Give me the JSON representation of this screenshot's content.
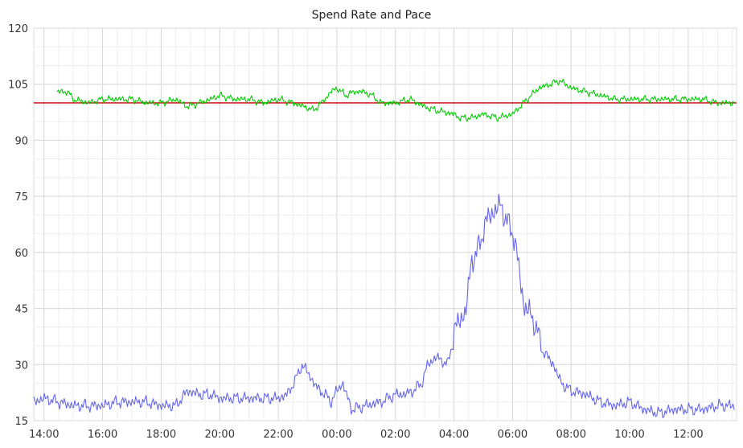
{
  "chart_data": {
    "type": "line",
    "title": "Spend Rate and Pace",
    "xlabel": "",
    "ylabel": "",
    "ylim": [
      15,
      120
    ],
    "xlim_hours": [
      13.65,
      37.65
    ],
    "y_ticks": [
      "15",
      "30",
      "45",
      "60",
      "75",
      "90",
      "105",
      "120"
    ],
    "x_ticks": [
      {
        "label": "14:00",
        "hour": 14
      },
      {
        "label": "16:00",
        "hour": 16
      },
      {
        "label": "18:00",
        "hour": 18
      },
      {
        "label": "20:00",
        "hour": 20
      },
      {
        "label": "22:00",
        "hour": 22
      },
      {
        "label": "00:00",
        "hour": 24
      },
      {
        "label": "02:00",
        "hour": 26
      },
      {
        "label": "04:00",
        "hour": 28
      },
      {
        "label": "06:00",
        "hour": 30
      },
      {
        "label": "08:00",
        "hour": 32
      },
      {
        "label": "10:00",
        "hour": 34
      },
      {
        "label": "12:00",
        "hour": 36
      }
    ],
    "grid": true,
    "reference_line": {
      "y": 100,
      "color": "#cc0000"
    },
    "series": [
      {
        "name": "",
        "color": "#00cc00",
        "x_hours": [
          14.45,
          14.8,
          15.0,
          15.5,
          16.0,
          16.5,
          17.0,
          17.5,
          18.0,
          18.5,
          18.9,
          19.3,
          19.7,
          20.0,
          20.5,
          21.0,
          21.5,
          22.0,
          22.5,
          22.9,
          23.2,
          23.6,
          23.8,
          24.0,
          24.3,
          24.6,
          24.9,
          25.2,
          25.5,
          26.0,
          26.5,
          27.0,
          27.4,
          28.0,
          28.2,
          28.6,
          29.0,
          29.5,
          30.0,
          30.5,
          30.9,
          31.3,
          31.6,
          32.0,
          32.5,
          33.0,
          33.5,
          34.0,
          34.5,
          35.0,
          35.5,
          36.0,
          36.5,
          37.0,
          37.6
        ],
        "values": [
          103,
          103,
          101,
          100,
          101,
          101,
          101,
          100,
          100,
          101,
          99,
          100,
          101,
          102,
          101,
          101,
          100,
          101,
          100,
          99,
          98,
          101,
          103,
          104,
          102,
          103,
          103,
          102,
          100,
          100,
          101,
          99,
          98,
          97,
          96,
          96,
          97,
          96,
          97,
          101,
          104,
          105,
          106,
          104,
          103,
          102,
          101,
          101,
          101,
          101,
          101,
          101,
          101,
          100,
          100
        ]
      },
      {
        "name": "",
        "color": "#6666ee",
        "x_hours": [
          13.65,
          14.0,
          14.5,
          15.0,
          15.5,
          16.0,
          16.5,
          17.0,
          17.5,
          18.0,
          18.5,
          18.9,
          19.3,
          19.7,
          20.0,
          20.5,
          21.0,
          21.5,
          22.0,
          22.3,
          22.6,
          22.8,
          23.0,
          23.3,
          23.6,
          23.8,
          24.0,
          24.2,
          24.5,
          25.0,
          25.5,
          26.0,
          26.3,
          26.6,
          26.9,
          27.1,
          27.4,
          27.6,
          27.8,
          28.0,
          28.2,
          28.4,
          28.6,
          28.8,
          29.0,
          29.2,
          29.4,
          29.6,
          29.8,
          30.0,
          30.2,
          30.4,
          30.6,
          30.8,
          31.0,
          31.2,
          31.4,
          31.6,
          31.8,
          32.0,
          32.5,
          33.0,
          33.5,
          34.0,
          34.5,
          35.0,
          35.5,
          36.0,
          36.5,
          37.0,
          37.6
        ],
        "values": [
          20,
          21,
          20,
          19,
          19,
          19,
          20,
          20,
          20,
          19,
          19,
          23,
          22,
          22,
          21,
          21,
          21,
          21,
          21,
          22,
          26,
          30,
          28,
          24,
          22,
          20,
          23,
          25,
          18,
          19,
          20,
          22,
          22,
          23,
          25,
          30,
          32,
          31,
          30,
          39,
          42,
          44,
          58,
          60,
          66,
          70,
          71,
          73,
          68,
          66,
          57,
          45,
          44,
          40,
          34,
          32,
          30,
          26,
          24,
          23,
          22,
          20,
          19,
          20,
          18,
          17,
          18,
          18,
          18,
          19,
          19
        ]
      }
    ]
  }
}
